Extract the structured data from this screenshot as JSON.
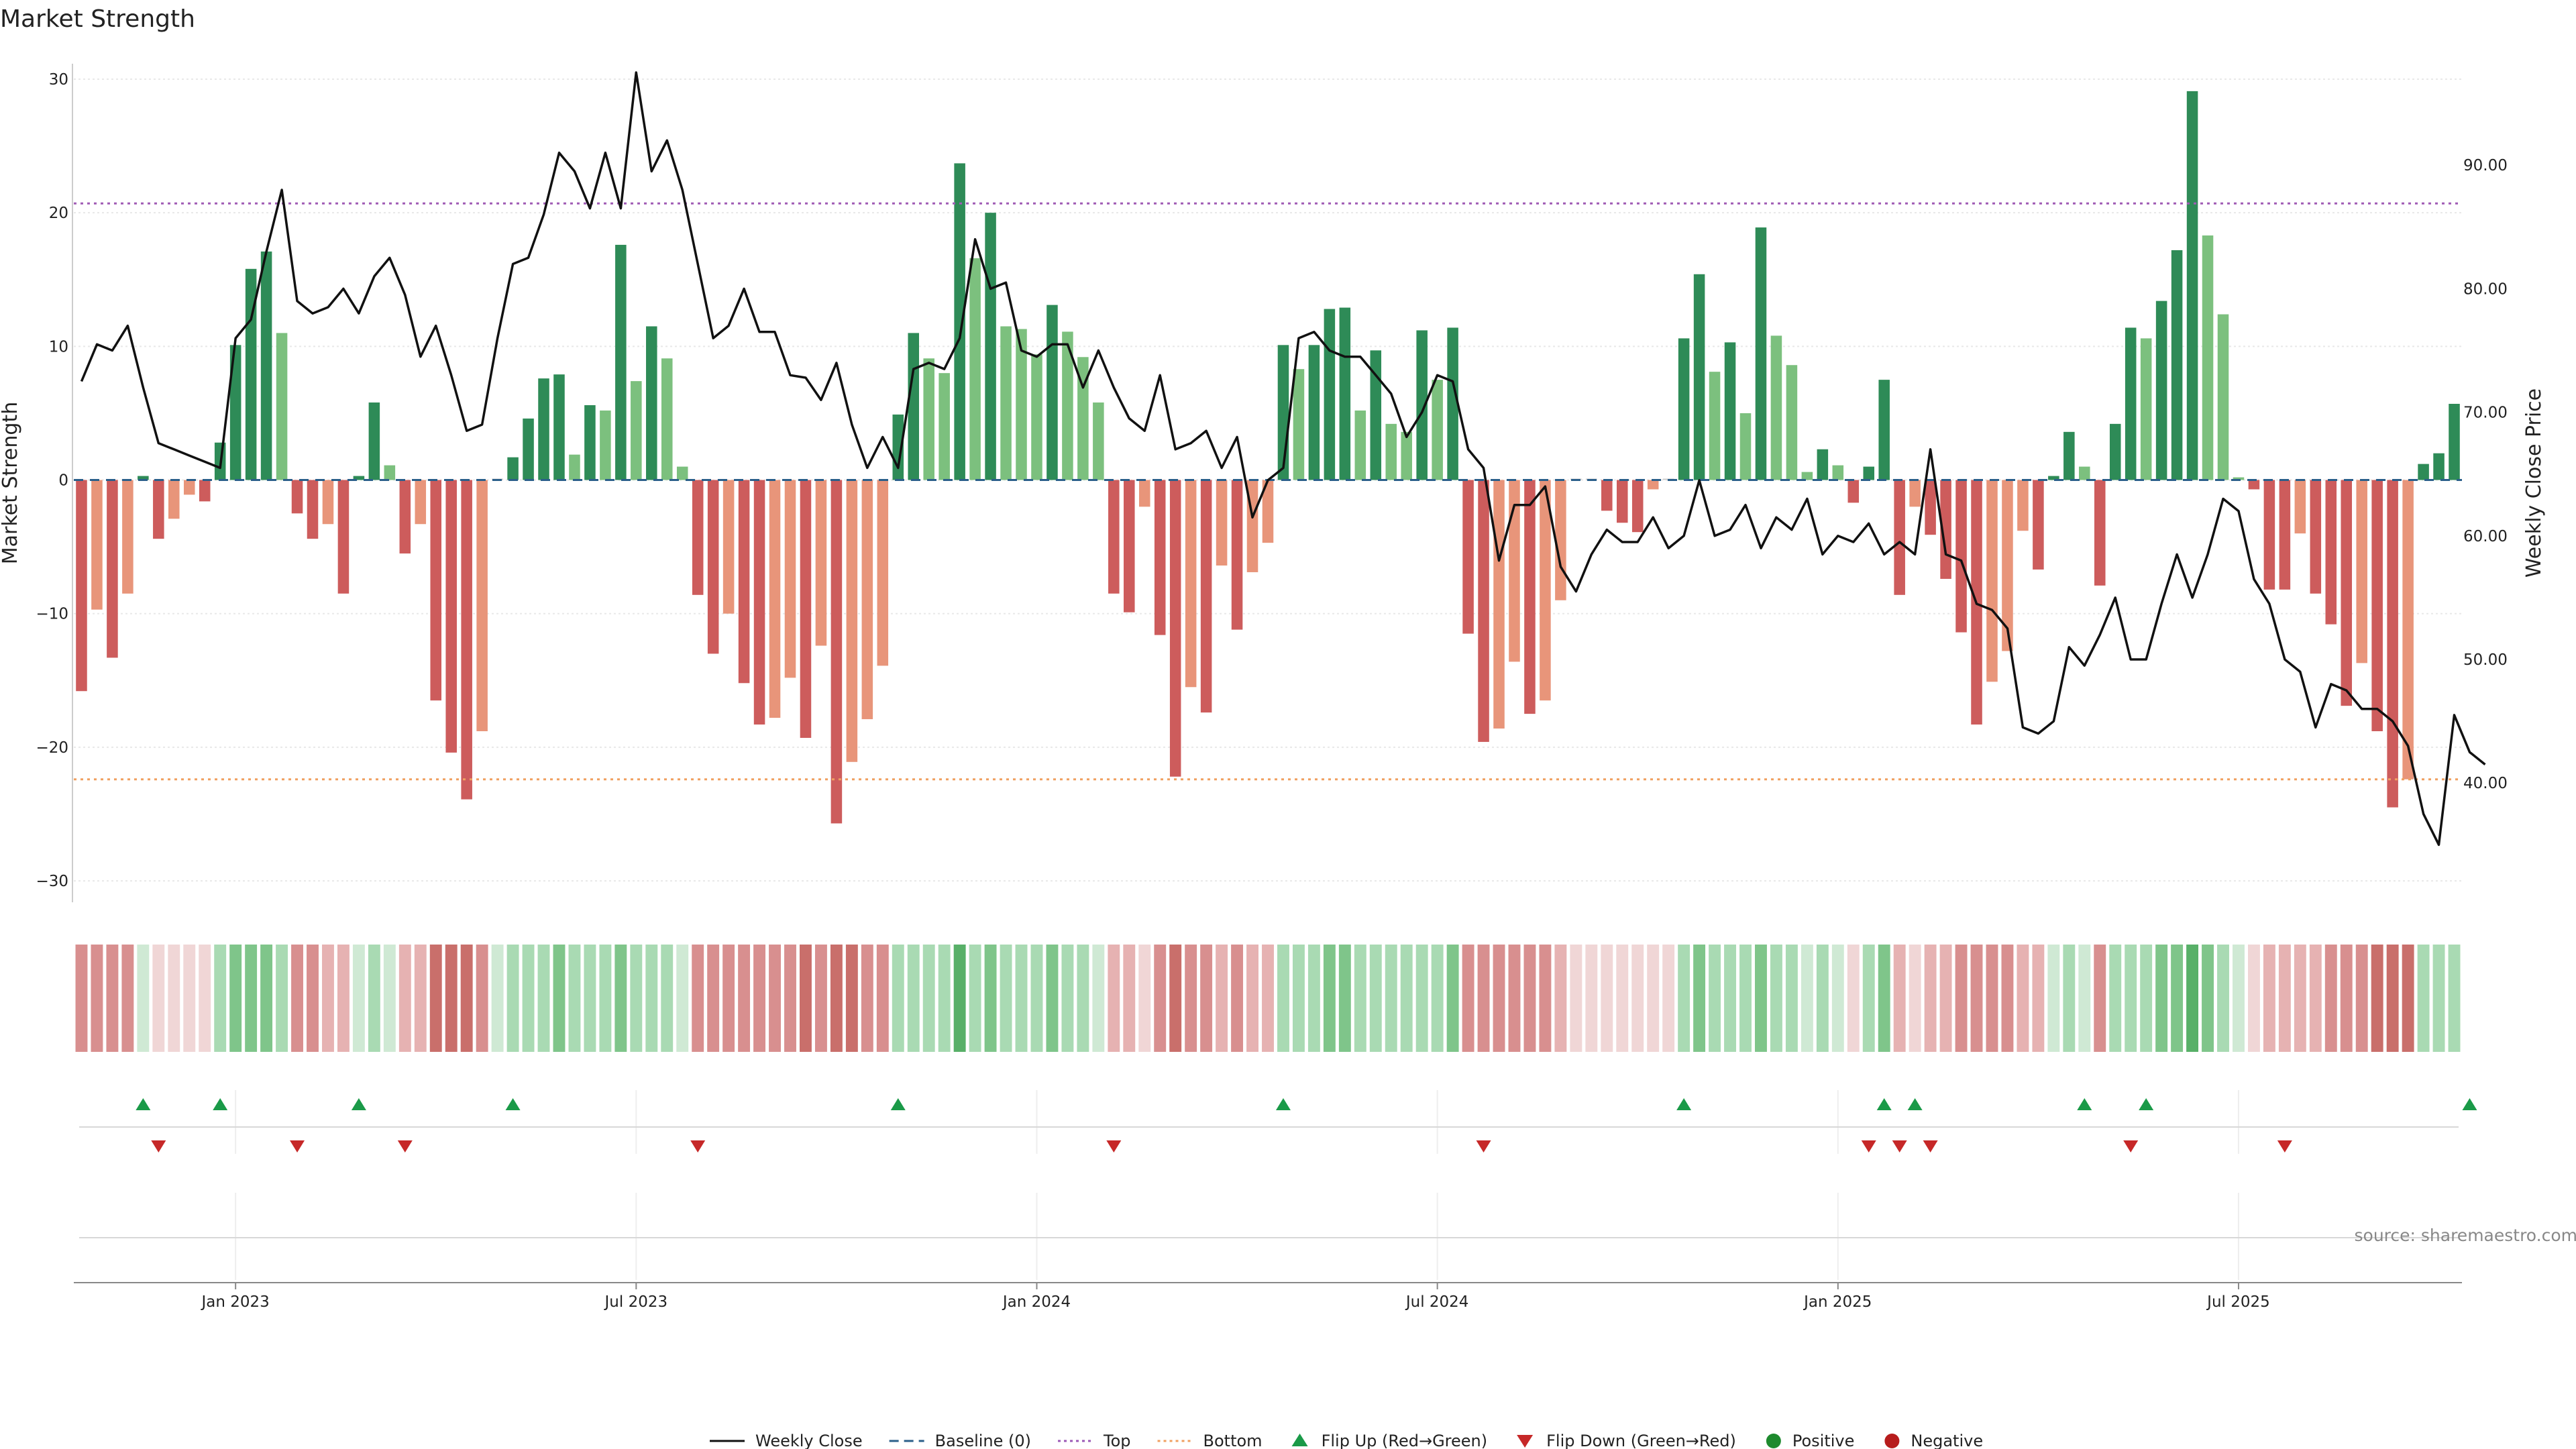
{
  "chart_data": {
    "type": "bar",
    "title": "Market Strength",
    "ylabel": "Market Strength",
    "y2label": "Weekly Close Price",
    "ylim": [
      -31,
      30.5
    ],
    "y2lim": [
      31.0,
      97.5
    ],
    "yticks": [
      30,
      20,
      10,
      0,
      -10,
      -20,
      -30
    ],
    "y2ticks": [
      "90.00",
      "80.00",
      "70.00",
      "60.00",
      "50.00",
      "40.00"
    ],
    "xticks": [
      {
        "label": "Jan 2023",
        "week": 10
      },
      {
        "label": "Jul 2023",
        "week": 36
      },
      {
        "label": "Jan 2024",
        "week": 62
      },
      {
        "label": "Jul 2024",
        "week": 88
      },
      {
        "label": "Jan 2025",
        "week": 114
      },
      {
        "label": "Jul 2025",
        "week": 140
      }
    ],
    "top_line": 20.7,
    "bottom_line": -22.4,
    "strength": [
      -15.8,
      -9.7,
      -13.3,
      -8.5,
      0.3,
      -4.4,
      -2.9,
      -1.1,
      -1.6,
      2.8,
      10.1,
      15.8,
      17.1,
      11.0,
      -2.5,
      -4.4,
      -3.3,
      -8.5,
      0.3,
      5.8,
      1.1,
      -5.5,
      -3.3,
      -16.5,
      -20.4,
      -23.9,
      -18.8,
      0,
      1.7,
      4.6,
      7.6,
      7.9,
      1.9,
      5.6,
      5.2,
      17.6,
      7.4,
      11.5,
      9.1,
      1.0,
      -8.6,
      -13.0,
      -10.0,
      -15.2,
      -18.3,
      -17.8,
      -14.8,
      -19.3,
      -12.4,
      -25.7,
      -21.1,
      -17.9,
      -13.9,
      4.9,
      11.0,
      9.1,
      8.0,
      23.7,
      16.6,
      20.0,
      11.5,
      11.3,
      9.4,
      13.1,
      11.1,
      9.2,
      5.8,
      -8.5,
      -9.9,
      -2.0,
      -11.6,
      -22.2,
      -15.5,
      -17.4,
      -6.4,
      -11.2,
      -6.9,
      -4.7,
      10.1,
      8.3,
      10.1,
      12.8,
      12.9,
      5.2,
      9.7,
      4.2,
      3.6,
      11.2,
      7.5,
      11.4,
      -11.5,
      -19.6,
      -18.6,
      -13.6,
      -17.5,
      -16.5,
      -9.0,
      0,
      0,
      -2.3,
      -3.2,
      -3.9,
      -0.7,
      0,
      10.6,
      15.4,
      8.1,
      10.3,
      5.0,
      18.9,
      10.8,
      8.6,
      0.6,
      2.3,
      1.1,
      -1.7,
      1.0,
      7.5,
      -8.6,
      -2.0,
      -4.1,
      -7.4,
      -11.4,
      -18.3,
      -15.1,
      -12.8,
      -3.8,
      -6.7,
      0.3,
      3.6,
      1.0,
      -7.9,
      4.2,
      11.4,
      10.6,
      13.4,
      17.2,
      29.1,
      18.3,
      12.4,
      0.2,
      -0.7,
      -8.2,
      -8.2,
      -4.0,
      -8.5,
      -10.8,
      -16.9,
      -13.7,
      -18.8,
      -24.5,
      -22.4,
      1.2,
      2.0,
      5.7
    ],
    "weekly_close": [
      72.5,
      75.5,
      75.0,
      77.0,
      72.0,
      67.5,
      67.0,
      66.5,
      66.0,
      65.5,
      76.0,
      77.5,
      83.0,
      88.0,
      79.0,
      78.0,
      78.5,
      80.0,
      78.0,
      81.0,
      82.5,
      79.5,
      74.5,
      77.0,
      73.0,
      68.5,
      69.0,
      76.0,
      82.0,
      82.5,
      86.0,
      91.0,
      89.5,
      86.5,
      91.0,
      86.5,
      97.5,
      89.5,
      92.0,
      88.0,
      82.0,
      76.0,
      77.0,
      80.0,
      76.5,
      76.5,
      73.0,
      72.8,
      71.0,
      74.0,
      69.0,
      65.5,
      68.0,
      65.5,
      73.5,
      74.0,
      73.5,
      76.0,
      84.0,
      80.0,
      80.5,
      75.0,
      74.5,
      75.5,
      75.5,
      72.0,
      75.0,
      72.0,
      69.5,
      68.5,
      73.0,
      67.0,
      67.5,
      68.5,
      65.5,
      68.0,
      61.5,
      64.5,
      65.5,
      76.0,
      76.5,
      75.0,
      74.5,
      74.5,
      73.0,
      71.5,
      68.0,
      70.0,
      73.0,
      72.5,
      67.0,
      65.5,
      58.0,
      62.5,
      62.5,
      64.0,
      57.5,
      55.5,
      58.5,
      60.5,
      59.5,
      59.5,
      61.5,
      59.0,
      60.0,
      64.5,
      60.0,
      60.5,
      62.5,
      59.0,
      61.5,
      60.5,
      63.0,
      58.5,
      60.0,
      59.5,
      61.0,
      58.5,
      59.5,
      58.5,
      67.0,
      58.5,
      58.0,
      54.5,
      54.0,
      52.5,
      44.5,
      44.0,
      45.0,
      51.0,
      49.5,
      52.0,
      55.0,
      50.0,
      50.0,
      54.5,
      58.5,
      55.0,
      58.5,
      63.0,
      62.0,
      56.5,
      54.5,
      50.0,
      49.0,
      44.5,
      48.0,
      47.5,
      46.0,
      46.0,
      45.0,
      43.0,
      37.5,
      35.0,
      45.5,
      42.5,
      41.5
    ],
    "strip": [
      -3,
      -3,
      -3,
      -3,
      1,
      -1,
      -1,
      -1,
      -1,
      2,
      3,
      3,
      3,
      2,
      -3,
      -3,
      -2,
      -2,
      1,
      2,
      1,
      -2,
      -2,
      -4,
      -4,
      -4,
      -3,
      1,
      2,
      2,
      2,
      3,
      2,
      2,
      2,
      3,
      2,
      2,
      2,
      1,
      -3,
      -3,
      -3,
      -3,
      -3,
      -3,
      -3,
      -4,
      -3,
      -4,
      -4,
      -3,
      -3,
      2,
      2,
      2,
      2,
      4,
      2,
      3,
      2,
      2,
      2,
      3,
      2,
      2,
      1,
      -2,
      -2,
      -1,
      -3,
      -4,
      -3,
      -3,
      -2,
      -3,
      -2,
      -2,
      2,
      2,
      2,
      3,
      3,
      2,
      2,
      2,
      2,
      2,
      2,
      3,
      -3,
      -3,
      -3,
      -3,
      -3,
      -3,
      -2,
      -1,
      -1,
      -1,
      -1,
      -1,
      -1,
      -1,
      2,
      3,
      2,
      2,
      2,
      3,
      2,
      2,
      1,
      2,
      1,
      -1,
      2,
      3,
      -2,
      -1,
      -2,
      -2,
      -3,
      -3,
      -3,
      -3,
      -2,
      -2,
      1,
      2,
      1,
      -3,
      2,
      2,
      2,
      3,
      3,
      4,
      3,
      2,
      1,
      -1,
      -2,
      -2,
      -2,
      -2,
      -3,
      -3,
      -3,
      -4,
      -4,
      -4,
      2,
      2,
      2
    ],
    "flip_up_weeks": [
      4,
      9,
      18,
      28,
      53,
      78,
      104,
      117,
      119,
      130,
      134,
      155
    ],
    "flip_down_weeks": [
      5,
      14,
      21,
      40,
      67,
      91,
      116,
      118,
      120,
      133,
      143
    ],
    "source": "source: sharemaestro.com",
    "legend": [
      {
        "label": "Weekly Close",
        "kind": "line",
        "color": "#111111"
      },
      {
        "label": "Baseline (0)",
        "kind": "dash",
        "color": "#2b5f8a"
      },
      {
        "label": "Top",
        "kind": "dot",
        "color": "#9b59b6"
      },
      {
        "label": "Bottom",
        "kind": "dot",
        "color": "#f0a060"
      },
      {
        "label": "Flip Up (Red→Green)",
        "kind": "up",
        "color": "#1a9a48"
      },
      {
        "label": "Flip Down (Green→Red)",
        "kind": "down",
        "color": "#c62828"
      },
      {
        "label": "Positive",
        "kind": "circle",
        "color": "#1e8a2e"
      },
      {
        "label": "Negative",
        "kind": "circle",
        "color": "#b71c1c"
      }
    ]
  }
}
